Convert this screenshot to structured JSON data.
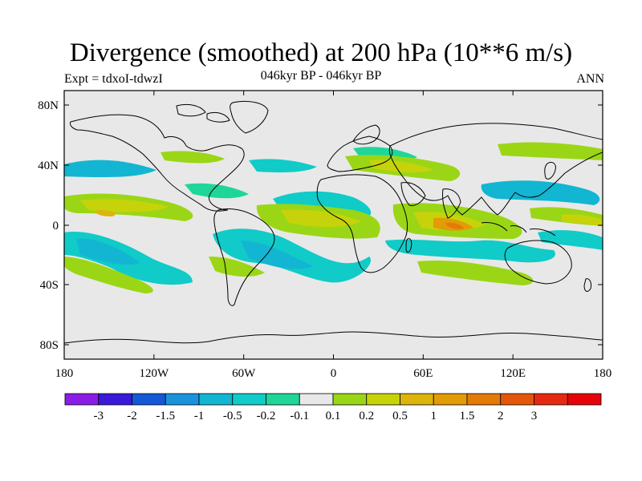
{
  "title": "Divergence (smoothed) at 200 hPa (10**6 m/s)",
  "left_label": "Expt = tdxoI-tdwzI",
  "center_label": "046kyr BP - 046kyr BP",
  "right_label": "ANN",
  "lat_ticks": [
    "80N",
    "40N",
    "0",
    "40S",
    "80S"
  ],
  "lon_ticks": [
    "180",
    "120W",
    "60W",
    "0",
    "60E",
    "120E",
    "180"
  ],
  "colorbar": {
    "colors": [
      "#8a1ee6",
      "#3a19d8",
      "#1558d6",
      "#1a93dc",
      "#12b6d2",
      "#10cbc8",
      "#1fd69a",
      "#e8e8e8",
      "#9bd616",
      "#c7d30a",
      "#dcb40b",
      "#e29c05",
      "#e47b06",
      "#e4570b",
      "#e62a12",
      "#e6040a"
    ],
    "labels": [
      "-3",
      "-2",
      "-1.5",
      "-1",
      "-0.5",
      "-0.2",
      "-0.1",
      "0.1",
      "0.2",
      "0.5",
      "1",
      "1.5",
      "2",
      "3"
    ]
  },
  "map_colors": {
    "background": "#e8e8e8",
    "coast": "#000000"
  }
}
